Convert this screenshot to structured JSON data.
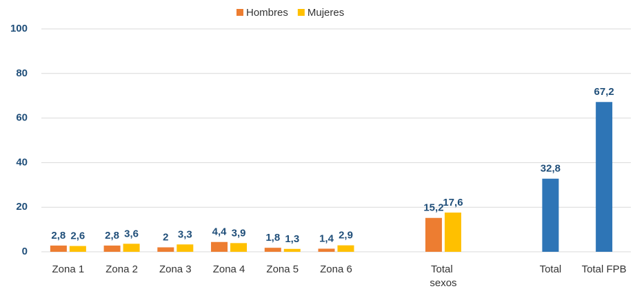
{
  "chart_data": {
    "type": "bar",
    "categories": [
      "Zona 1",
      "Zona 2",
      "Zona 3",
      "Zona 4",
      "Zona 5",
      "Zona 6",
      null,
      "Total sexos",
      null,
      "Total",
      "Total FPB"
    ],
    "series": [
      {
        "name": "Hombres",
        "color": "#ed7d31",
        "values": [
          2.8,
          2.8,
          2,
          4.4,
          1.8,
          1.4,
          null,
          15.2,
          null,
          null,
          null
        ],
        "value_labels": [
          "2,8",
          "2,8",
          "2",
          "4,4",
          "1,8",
          "1,4",
          null,
          "15,2",
          null,
          null,
          null
        ]
      },
      {
        "name": "Mujeres",
        "color": "#ffc000",
        "values": [
          2.6,
          3.6,
          3.3,
          3.9,
          1.3,
          2.9,
          null,
          17.6,
          null,
          null,
          null
        ],
        "value_labels": [
          "2,6",
          "3,6",
          "3,3",
          "3,9",
          "1,3",
          "2,9",
          null,
          "17,6",
          null,
          null,
          null
        ]
      },
      {
        "color": "#2e75b6",
        "values": [
          null,
          null,
          null,
          null,
          null,
          null,
          null,
          null,
          null,
          32.8,
          67.2
        ],
        "value_labels": [
          null,
          null,
          null,
          null,
          null,
          null,
          null,
          null,
          null,
          "32,8",
          "67,2"
        ]
      }
    ],
    "ylim": [
      0,
      100
    ],
    "yticks": [
      0,
      20,
      40,
      60,
      80,
      100
    ],
    "grid": true,
    "legend": "top"
  }
}
